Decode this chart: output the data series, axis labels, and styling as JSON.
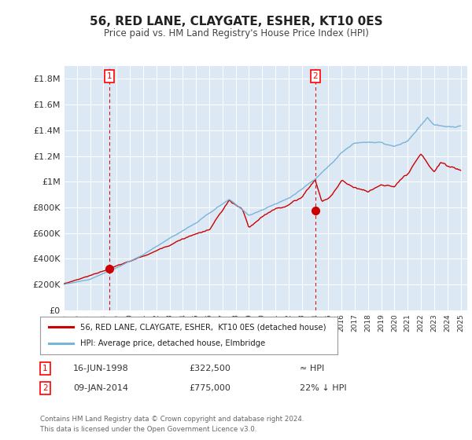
{
  "title": "56, RED LANE, CLAYGATE, ESHER, KT10 0ES",
  "subtitle": "Price paid vs. HM Land Registry's House Price Index (HPI)",
  "plot_bg_color": "#dce9f5",
  "outer_bg_color": "#ffffff",
  "y_ticks": [
    0,
    200000,
    400000,
    600000,
    800000,
    1000000,
    1200000,
    1400000,
    1600000,
    1800000
  ],
  "y_tick_labels": [
    "£0",
    "£200K",
    "£400K",
    "£600K",
    "£800K",
    "£1M",
    "£1.2M",
    "£1.4M",
    "£1.6M",
    "£1.8M"
  ],
  "x_start_year": 1995,
  "x_end_year": 2025,
  "hpi_color": "#7ab3d9",
  "price_color": "#cc0000",
  "marker1_year": 1998.45,
  "marker1_price": 322500,
  "marker2_year": 2014.02,
  "marker2_price": 775000,
  "legend_text1": "56, RED LANE, CLAYGATE, ESHER,  KT10 0ES (detached house)",
  "legend_text2": "HPI: Average price, detached house, Elmbridge",
  "annotation1_date": "16-JUN-1998",
  "annotation1_price": "£322,500",
  "annotation1_hpi": "≈ HPI",
  "annotation2_date": "09-JAN-2014",
  "annotation2_price": "£775,000",
  "annotation2_hpi": "22% ↓ HPI",
  "footer": "Contains HM Land Registry data © Crown copyright and database right 2024.\nThis data is licensed under the Open Government Licence v3.0."
}
